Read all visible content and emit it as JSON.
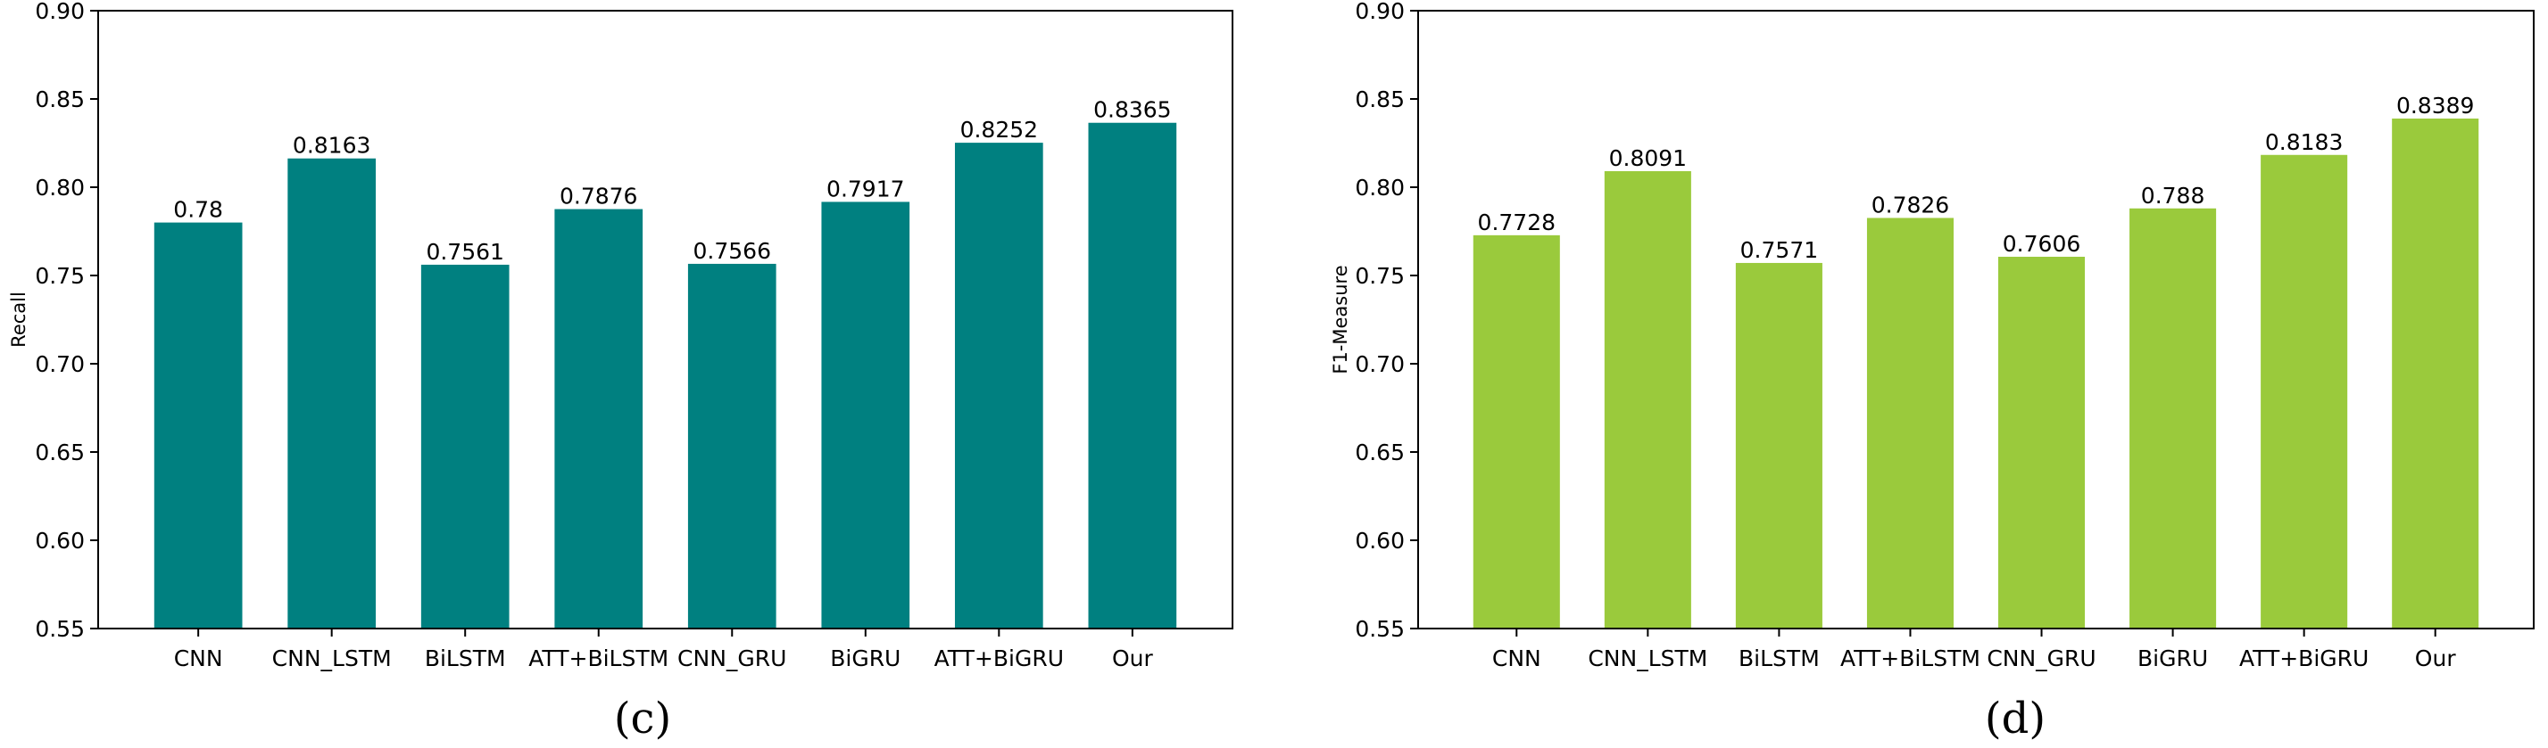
{
  "chart_data": [
    {
      "type": "bar",
      "categories": [
        "CNN",
        "CNN_LSTM",
        "BiLSTM",
        "ATT+BiLSTM",
        "CNN_GRU",
        "BiGRU",
        "ATT+BiGRU",
        "Our"
      ],
      "values": [
        0.78,
        0.8163,
        0.7561,
        0.7876,
        0.7566,
        0.7917,
        0.8252,
        0.8365
      ],
      "value_labels": [
        "0.78",
        "0.8163",
        "0.7561",
        "0.7876",
        "0.7566",
        "0.7917",
        "0.8252",
        "0.8365"
      ],
      "title": "",
      "xlabel": "",
      "ylabel": "Recall",
      "ylim": [
        0.55,
        0.9
      ],
      "yticks": [
        "0.55",
        "0.60",
        "0.65",
        "0.70",
        "0.75",
        "0.80",
        "0.85",
        "0.90"
      ],
      "grid": false,
      "color": "#008080",
      "caption": "(c)"
    },
    {
      "type": "bar",
      "categories": [
        "CNN",
        "CNN_LSTM",
        "BiLSTM",
        "ATT+BiLSTM",
        "CNN_GRU",
        "BiGRU",
        "ATT+BiGRU",
        "Our"
      ],
      "values": [
        0.7728,
        0.8091,
        0.7571,
        0.7826,
        0.7606,
        0.788,
        0.8183,
        0.8389
      ],
      "value_labels": [
        "0.7728",
        "0.8091",
        "0.7571",
        "0.7826",
        "0.7606",
        "0.788",
        "0.8183",
        "0.8389"
      ],
      "title": "",
      "xlabel": "",
      "ylabel": "F1-Measure",
      "ylim": [
        0.55,
        0.9
      ],
      "yticks": [
        "0.55",
        "0.60",
        "0.65",
        "0.70",
        "0.75",
        "0.80",
        "0.85",
        "0.90"
      ],
      "grid": false,
      "color": "#9ACA3C",
      "caption": "(d)"
    }
  ]
}
